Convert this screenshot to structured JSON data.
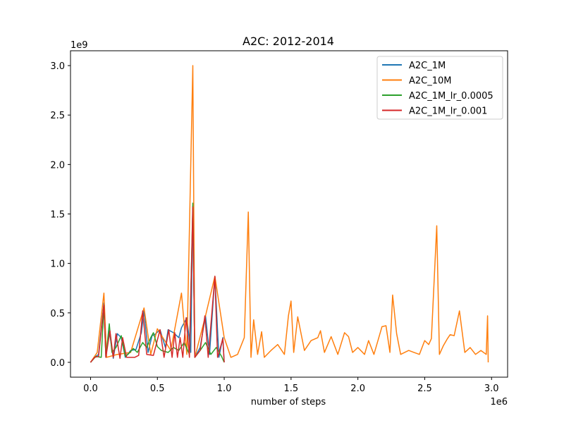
{
  "chart_data": {
    "type": "line",
    "title": "A2C: 2012-2014",
    "xlabel": "number of steps",
    "ylabel": "",
    "x_multiplier_label": "1e6",
    "y_multiplier_label": "1e9",
    "xlim": [
      -0.15,
      3.12
    ],
    "ylim": [
      -0.15,
      3.15
    ],
    "x_ticks": [
      0.0,
      0.5,
      1.0,
      1.5,
      2.0,
      2.5,
      3.0
    ],
    "x_tick_labels": [
      "0.0",
      "0.5",
      "1.0",
      "1.5",
      "2.0",
      "2.5",
      "3.0"
    ],
    "y_ticks": [
      0.0,
      0.5,
      1.0,
      1.5,
      2.0,
      2.5,
      3.0
    ],
    "y_tick_labels": [
      "0.0",
      "0.5",
      "1.0",
      "1.5",
      "2.0",
      "2.5",
      "3.0"
    ],
    "grid": false,
    "legend_position": "top-right",
    "series": [
      {
        "name": "A2C_1M",
        "color": "#1f77b4",
        "points": [
          [
            0.0,
            0.0
          ],
          [
            0.03,
            0.05
          ],
          [
            0.06,
            0.08
          ],
          [
            0.1,
            0.6
          ],
          [
            0.115,
            0.05
          ],
          [
            0.14,
            0.32
          ],
          [
            0.17,
            0.04
          ],
          [
            0.2,
            0.29
          ],
          [
            0.23,
            0.25
          ],
          [
            0.26,
            0.05
          ],
          [
            0.3,
            0.12
          ],
          [
            0.34,
            0.13
          ],
          [
            0.38,
            0.3
          ],
          [
            0.4,
            0.52
          ],
          [
            0.43,
            0.1
          ],
          [
            0.46,
            0.27
          ],
          [
            0.48,
            0.28
          ],
          [
            0.52,
            0.33
          ],
          [
            0.56,
            0.15
          ],
          [
            0.58,
            0.33
          ],
          [
            0.62,
            0.3
          ],
          [
            0.66,
            0.25
          ],
          [
            0.68,
            0.35
          ],
          [
            0.72,
            0.45
          ],
          [
            0.75,
            0.1
          ],
          [
            0.765,
            1.58
          ],
          [
            0.78,
            0.05
          ],
          [
            0.82,
            0.15
          ],
          [
            0.86,
            0.47
          ],
          [
            0.89,
            0.08
          ],
          [
            0.93,
            0.87
          ],
          [
            0.96,
            0.05
          ],
          [
            0.99,
            0.25
          ],
          [
            1.0,
            0.0
          ]
        ]
      },
      {
        "name": "A2C_10M",
        "color": "#ff7f0e",
        "points": [
          [
            0.0,
            0.0
          ],
          [
            0.05,
            0.1
          ],
          [
            0.1,
            0.7
          ],
          [
            0.12,
            0.05
          ],
          [
            0.2,
            0.08
          ],
          [
            0.3,
            0.1
          ],
          [
            0.4,
            0.55
          ],
          [
            0.45,
            0.08
          ],
          [
            0.5,
            0.34
          ],
          [
            0.6,
            0.12
          ],
          [
            0.68,
            0.7
          ],
          [
            0.72,
            0.08
          ],
          [
            0.765,
            3.0
          ],
          [
            0.78,
            0.05
          ],
          [
            0.86,
            0.47
          ],
          [
            0.93,
            0.87
          ],
          [
            1.0,
            0.25
          ],
          [
            1.05,
            0.05
          ],
          [
            1.1,
            0.08
          ],
          [
            1.15,
            0.25
          ],
          [
            1.18,
            1.52
          ],
          [
            1.2,
            0.05
          ],
          [
            1.22,
            0.43
          ],
          [
            1.25,
            0.08
          ],
          [
            1.28,
            0.31
          ],
          [
            1.3,
            0.05
          ],
          [
            1.35,
            0.12
          ],
          [
            1.4,
            0.18
          ],
          [
            1.45,
            0.08
          ],
          [
            1.48,
            0.47
          ],
          [
            1.5,
            0.62
          ],
          [
            1.52,
            0.1
          ],
          [
            1.55,
            0.46
          ],
          [
            1.6,
            0.12
          ],
          [
            1.65,
            0.22
          ],
          [
            1.7,
            0.25
          ],
          [
            1.72,
            0.32
          ],
          [
            1.75,
            0.1
          ],
          [
            1.8,
            0.26
          ],
          [
            1.85,
            0.08
          ],
          [
            1.9,
            0.3
          ],
          [
            1.93,
            0.26
          ],
          [
            1.96,
            0.1
          ],
          [
            2.0,
            0.15
          ],
          [
            2.05,
            0.08
          ],
          [
            2.08,
            0.22
          ],
          [
            2.12,
            0.08
          ],
          [
            2.18,
            0.36
          ],
          [
            2.21,
            0.37
          ],
          [
            2.24,
            0.1
          ],
          [
            2.26,
            0.68
          ],
          [
            2.29,
            0.29
          ],
          [
            2.32,
            0.08
          ],
          [
            2.38,
            0.12
          ],
          [
            2.42,
            0.1
          ],
          [
            2.46,
            0.08
          ],
          [
            2.5,
            0.22
          ],
          [
            2.53,
            0.18
          ],
          [
            2.55,
            0.24
          ],
          [
            2.59,
            1.38
          ],
          [
            2.61,
            0.08
          ],
          [
            2.64,
            0.17
          ],
          [
            2.67,
            0.24
          ],
          [
            2.69,
            0.28
          ],
          [
            2.72,
            0.27
          ],
          [
            2.76,
            0.52
          ],
          [
            2.8,
            0.1
          ],
          [
            2.84,
            0.15
          ],
          [
            2.88,
            0.08
          ],
          [
            2.92,
            0.12
          ],
          [
            2.96,
            0.08
          ],
          [
            2.97,
            0.47
          ],
          [
            2.975,
            0.0
          ]
        ]
      },
      {
        "name": "A2C_1M_lr_0.0005",
        "color": "#2ca02c",
        "points": [
          [
            0.0,
            0.0
          ],
          [
            0.04,
            0.06
          ],
          [
            0.08,
            0.05
          ],
          [
            0.1,
            0.58
          ],
          [
            0.115,
            0.05
          ],
          [
            0.14,
            0.39
          ],
          [
            0.16,
            0.1
          ],
          [
            0.19,
            0.15
          ],
          [
            0.23,
            0.27
          ],
          [
            0.26,
            0.06
          ],
          [
            0.28,
            0.08
          ],
          [
            0.32,
            0.14
          ],
          [
            0.35,
            0.1
          ],
          [
            0.39,
            0.2
          ],
          [
            0.42,
            0.15
          ],
          [
            0.45,
            0.25
          ],
          [
            0.47,
            0.3
          ],
          [
            0.5,
            0.16
          ],
          [
            0.53,
            0.12
          ],
          [
            0.58,
            0.1
          ],
          [
            0.62,
            0.15
          ],
          [
            0.66,
            0.12
          ],
          [
            0.7,
            0.2
          ],
          [
            0.74,
            0.08
          ],
          [
            0.765,
            1.61
          ],
          [
            0.78,
            0.05
          ],
          [
            0.82,
            0.12
          ],
          [
            0.86,
            0.2
          ],
          [
            0.9,
            0.08
          ],
          [
            0.94,
            0.15
          ],
          [
            0.98,
            0.06
          ],
          [
            1.0,
            0.0
          ]
        ]
      },
      {
        "name": "A2C_1M_lr_0.001",
        "color": "#d62728",
        "points": [
          [
            0.0,
            0.0
          ],
          [
            0.03,
            0.05
          ],
          [
            0.06,
            0.06
          ],
          [
            0.1,
            0.58
          ],
          [
            0.115,
            0.05
          ],
          [
            0.145,
            0.32
          ],
          [
            0.17,
            0.05
          ],
          [
            0.19,
            0.29
          ],
          [
            0.22,
            0.04
          ],
          [
            0.24,
            0.25
          ],
          [
            0.27,
            0.05
          ],
          [
            0.3,
            0.05
          ],
          [
            0.33,
            0.05
          ],
          [
            0.36,
            0.07
          ],
          [
            0.39,
            0.52
          ],
          [
            0.42,
            0.08
          ],
          [
            0.47,
            0.07
          ],
          [
            0.52,
            0.33
          ],
          [
            0.55,
            0.05
          ],
          [
            0.585,
            0.33
          ],
          [
            0.61,
            0.05
          ],
          [
            0.63,
            0.3
          ],
          [
            0.65,
            0.05
          ],
          [
            0.67,
            0.25
          ],
          [
            0.69,
            0.05
          ],
          [
            0.715,
            0.45
          ],
          [
            0.74,
            0.05
          ],
          [
            0.765,
            1.57
          ],
          [
            0.78,
            0.05
          ],
          [
            0.82,
            0.12
          ],
          [
            0.855,
            0.47
          ],
          [
            0.88,
            0.05
          ],
          [
            0.93,
            0.87
          ],
          [
            0.95,
            0.05
          ],
          [
            0.99,
            0.24
          ],
          [
            1.0,
            0.0
          ]
        ]
      }
    ]
  }
}
